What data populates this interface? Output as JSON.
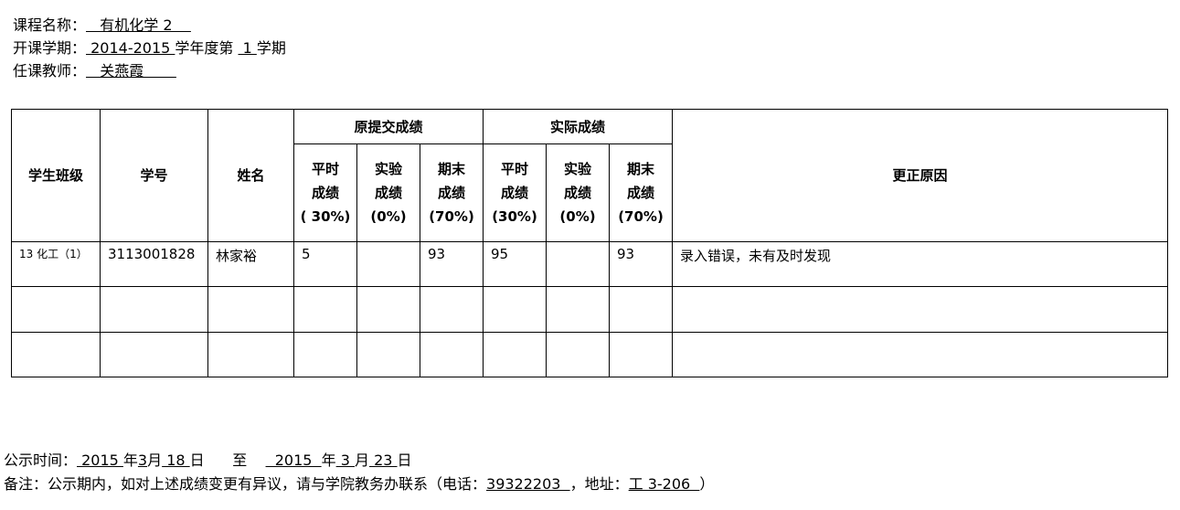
{
  "header": {
    "course_label": "课程名称：",
    "course_value": "   有机化学 2    ",
    "term_label": "开课学期：",
    "term_year": " 2014-2015 ",
    "term_mid": "学年度第 ",
    "term_no": " 1 ",
    "term_end": "学期",
    "teacher_label": "任课教师：",
    "teacher_value": "   关燕霞       "
  },
  "table": {
    "headers": {
      "class": "学生班级",
      "id": "学号",
      "name": "姓名",
      "original": "原提交成绩",
      "actual": "实际成绩",
      "reason": "更正原因",
      "regular": [
        "平时",
        "成绩",
        "( 30%)"
      ],
      "lab": [
        "实验",
        "成绩",
        "(0%)"
      ],
      "final": [
        "期末",
        "成绩",
        "(70%)"
      ],
      "regular2": [
        "平时",
        "成绩",
        "(30%)"
      ],
      "lab2": [
        "实验",
        "成绩",
        "(0%)"
      ],
      "final2": [
        "期末",
        "成绩",
        "(70%)"
      ]
    },
    "rows": [
      {
        "class": "13 化工（1）",
        "id": "3113001828",
        "name": "林家裕",
        "o_regular": "5",
        "o_lab": "",
        "o_final": "93",
        "a_regular": "95",
        "a_lab": "",
        "a_final": "93",
        "reason": "录入错误，未有及时发现"
      }
    ]
  },
  "footer": {
    "time_label": "公示时间：",
    "y1": " 2015 ",
    "m1": "3",
    "d1": " 18 ",
    "to": "至",
    "y2": "  2015  ",
    "m2": " 3 ",
    "d2": " 23 ",
    "year": "年",
    "month": "月",
    "day": "日",
    "note": "备注：公示期内，如对上述成绩变更有异议，请与学院教务办联系（电话：",
    "phone": "39322203  ",
    "addr_label": "，地址：",
    "addr": "工 3-206  ",
    "close": "）"
  }
}
